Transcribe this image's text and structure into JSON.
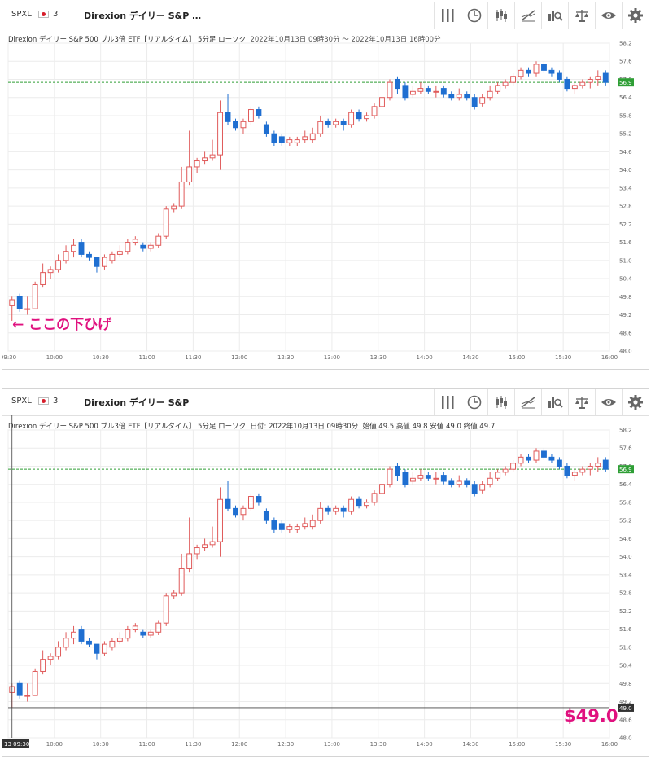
{
  "header": {
    "ticker": "SPXL",
    "flag_count": "3",
    "short_name": "Direxion デイリー S&P …",
    "short_name2": "Direxion デイリー S&P"
  },
  "toolbar_icons": [
    "bars-icon",
    "clock-icon",
    "candles-icon",
    "trend-icon",
    "search-chart-icon",
    "balance-icon",
    "eye-icon",
    "gear-icon"
  ],
  "panel1": {
    "info_title": "Direxion デイリー S&P 500 ブル3倍 ETF【リアルタイム】 5分足 ローソク",
    "info_range": "2022年10月13日 09時30分 ～ 2022年10月13日 16時00分",
    "annotation": "← ここの下ひげ"
  },
  "panel2": {
    "info_title": "Direxion デイリー S&P 500 ブル3倍 ETF【リアルタイム】 5分足 ローソク",
    "info_date_label": "日付:",
    "info_date": "2022年10月13日 09時30分",
    "info_open": "始値 49.5",
    "info_high": "高値 49.8",
    "info_low": "安値 49.0",
    "info_close": "終値 49.7",
    "price_label": "$49.0",
    "crosshair_price": "49.0",
    "crosshair_time": "13 09:30"
  },
  "colors": {
    "up": "#e05a5a",
    "down": "#1f6fd1",
    "last": "#2e9e35",
    "note": "#e0117f"
  },
  "chart_data": {
    "type": "candlestick",
    "interval": "5分足",
    "last_price_label": "56.9",
    "ylim": [
      48.0,
      58.2
    ],
    "y_ticks": [
      "58.2",
      "57.6",
      "57.0",
      "56.4",
      "55.8",
      "55.2",
      "54.6",
      "54.0",
      "53.4",
      "52.8",
      "52.2",
      "51.6",
      "51.0",
      "50.4",
      "49.8",
      "49.2",
      "48.6",
      "48.0"
    ],
    "x_ticks": [
      "09:30",
      "10:00",
      "10:30",
      "11:00",
      "11:30",
      "12:00",
      "12:30",
      "13:00",
      "13:30",
      "14:00",
      "14:30",
      "15:00",
      "15:30",
      "16:00"
    ],
    "candles": [
      {
        "t": "09:30",
        "o": 49.5,
        "h": 49.8,
        "l": 49.0,
        "c": 49.7
      },
      {
        "t": "09:35",
        "o": 49.8,
        "h": 49.9,
        "l": 49.3,
        "c": 49.4
      },
      {
        "t": "09:40",
        "o": 49.4,
        "h": 49.8,
        "l": 49.2,
        "c": 49.4
      },
      {
        "t": "09:45",
        "o": 49.4,
        "h": 50.3,
        "l": 49.4,
        "c": 50.2
      },
      {
        "t": "09:50",
        "o": 50.2,
        "h": 50.9,
        "l": 50.1,
        "c": 50.6
      },
      {
        "t": "09:55",
        "o": 50.6,
        "h": 50.8,
        "l": 50.4,
        "c": 50.7
      },
      {
        "t": "10:00",
        "o": 50.7,
        "h": 51.2,
        "l": 50.6,
        "c": 51.0
      },
      {
        "t": "10:05",
        "o": 51.0,
        "h": 51.5,
        "l": 50.9,
        "c": 51.3
      },
      {
        "t": "10:10",
        "o": 51.3,
        "h": 51.7,
        "l": 51.1,
        "c": 51.5
      },
      {
        "t": "10:15",
        "o": 51.6,
        "h": 51.7,
        "l": 51.1,
        "c": 51.2
      },
      {
        "t": "10:20",
        "o": 51.2,
        "h": 51.3,
        "l": 51.0,
        "c": 51.1
      },
      {
        "t": "10:25",
        "o": 51.1,
        "h": 51.1,
        "l": 50.6,
        "c": 50.8
      },
      {
        "t": "10:30",
        "o": 50.8,
        "h": 51.2,
        "l": 50.7,
        "c": 51.1
      },
      {
        "t": "10:35",
        "o": 51.0,
        "h": 51.3,
        "l": 50.9,
        "c": 51.2
      },
      {
        "t": "10:40",
        "o": 51.2,
        "h": 51.5,
        "l": 51.1,
        "c": 51.3
      },
      {
        "t": "10:45",
        "o": 51.3,
        "h": 51.7,
        "l": 51.2,
        "c": 51.6
      },
      {
        "t": "10:50",
        "o": 51.6,
        "h": 51.8,
        "l": 51.5,
        "c": 51.7
      },
      {
        "t": "10:55",
        "o": 51.5,
        "h": 51.6,
        "l": 51.3,
        "c": 51.4
      },
      {
        "t": "11:00",
        "o": 51.4,
        "h": 51.6,
        "l": 51.3,
        "c": 51.5
      },
      {
        "t": "11:05",
        "o": 51.5,
        "h": 51.9,
        "l": 51.4,
        "c": 51.8
      },
      {
        "t": "11:10",
        "o": 51.8,
        "h": 52.8,
        "l": 51.7,
        "c": 52.7
      },
      {
        "t": "11:15",
        "o": 52.7,
        "h": 52.9,
        "l": 52.6,
        "c": 52.8
      },
      {
        "t": "11:20",
        "o": 52.8,
        "h": 54.1,
        "l": 52.7,
        "c": 53.6
      },
      {
        "t": "11:25",
        "o": 53.6,
        "h": 55.3,
        "l": 53.5,
        "c": 54.1
      },
      {
        "t": "11:30",
        "o": 54.1,
        "h": 54.4,
        "l": 53.9,
        "c": 54.3
      },
      {
        "t": "11:35",
        "o": 54.3,
        "h": 54.6,
        "l": 54.2,
        "c": 54.4
      },
      {
        "t": "11:40",
        "o": 54.4,
        "h": 55.0,
        "l": 54.3,
        "c": 54.5
      },
      {
        "t": "11:45",
        "o": 54.5,
        "h": 56.3,
        "l": 54.0,
        "c": 55.9
      },
      {
        "t": "11:50",
        "o": 55.9,
        "h": 56.5,
        "l": 55.5,
        "c": 55.6
      },
      {
        "t": "11:55",
        "o": 55.6,
        "h": 55.7,
        "l": 55.3,
        "c": 55.4
      },
      {
        "t": "12:00",
        "o": 55.4,
        "h": 55.7,
        "l": 55.2,
        "c": 55.6
      },
      {
        "t": "12:05",
        "o": 55.6,
        "h": 56.1,
        "l": 55.5,
        "c": 56.0
      },
      {
        "t": "12:10",
        "o": 56.0,
        "h": 56.1,
        "l": 55.7,
        "c": 55.8
      },
      {
        "t": "12:15",
        "o": 55.5,
        "h": 55.6,
        "l": 55.1,
        "c": 55.2
      },
      {
        "t": "12:20",
        "o": 55.2,
        "h": 55.3,
        "l": 54.8,
        "c": 54.9
      },
      {
        "t": "12:25",
        "o": 55.1,
        "h": 55.2,
        "l": 54.8,
        "c": 54.9
      },
      {
        "t": "12:30",
        "o": 54.9,
        "h": 55.1,
        "l": 54.8,
        "c": 55.0
      },
      {
        "t": "12:35",
        "o": 54.9,
        "h": 55.1,
        "l": 54.8,
        "c": 55.0
      },
      {
        "t": "12:40",
        "o": 55.0,
        "h": 55.3,
        "l": 54.9,
        "c": 55.1
      },
      {
        "t": "12:45",
        "o": 55.0,
        "h": 55.4,
        "l": 54.9,
        "c": 55.2
      },
      {
        "t": "12:50",
        "o": 55.2,
        "h": 55.8,
        "l": 55.1,
        "c": 55.6
      },
      {
        "t": "12:55",
        "o": 55.6,
        "h": 55.7,
        "l": 55.4,
        "c": 55.5
      },
      {
        "t": "13:00",
        "o": 55.5,
        "h": 55.7,
        "l": 55.4,
        "c": 55.6
      },
      {
        "t": "13:05",
        "o": 55.6,
        "h": 55.7,
        "l": 55.3,
        "c": 55.5
      },
      {
        "t": "13:10",
        "o": 55.5,
        "h": 56.0,
        "l": 55.4,
        "c": 55.9
      },
      {
        "t": "13:15",
        "o": 55.9,
        "h": 56.0,
        "l": 55.6,
        "c": 55.7
      },
      {
        "t": "13:20",
        "o": 55.7,
        "h": 55.9,
        "l": 55.6,
        "c": 55.8
      },
      {
        "t": "13:25",
        "o": 55.8,
        "h": 56.2,
        "l": 55.7,
        "c": 56.1
      },
      {
        "t": "13:30",
        "o": 56.1,
        "h": 56.5,
        "l": 56.0,
        "c": 56.4
      },
      {
        "t": "13:35",
        "o": 56.4,
        "h": 57.0,
        "l": 56.3,
        "c": 56.9
      },
      {
        "t": "13:40",
        "o": 57.0,
        "h": 57.1,
        "l": 56.5,
        "c": 56.7
      },
      {
        "t": "13:45",
        "o": 56.8,
        "h": 56.9,
        "l": 56.3,
        "c": 56.4
      },
      {
        "t": "13:50",
        "o": 56.5,
        "h": 56.8,
        "l": 56.4,
        "c": 56.6
      },
      {
        "t": "13:55",
        "o": 56.6,
        "h": 56.9,
        "l": 56.5,
        "c": 56.7
      },
      {
        "t": "14:00",
        "o": 56.7,
        "h": 56.8,
        "l": 56.5,
        "c": 56.6
      },
      {
        "t": "14:05",
        "o": 56.6,
        "h": 56.8,
        "l": 56.4,
        "c": 56.6
      },
      {
        "t": "14:10",
        "o": 56.7,
        "h": 56.8,
        "l": 56.4,
        "c": 56.5
      },
      {
        "t": "14:15",
        "o": 56.5,
        "h": 56.6,
        "l": 56.3,
        "c": 56.4
      },
      {
        "t": "14:20",
        "o": 56.4,
        "h": 56.7,
        "l": 56.3,
        "c": 56.5
      },
      {
        "t": "14:25",
        "o": 56.5,
        "h": 56.6,
        "l": 56.3,
        "c": 56.4
      },
      {
        "t": "14:30",
        "o": 56.4,
        "h": 56.5,
        "l": 56.0,
        "c": 56.1
      },
      {
        "t": "14:35",
        "o": 56.2,
        "h": 56.5,
        "l": 56.1,
        "c": 56.4
      },
      {
        "t": "14:40",
        "o": 56.4,
        "h": 56.8,
        "l": 56.3,
        "c": 56.6
      },
      {
        "t": "14:45",
        "o": 56.6,
        "h": 56.9,
        "l": 56.5,
        "c": 56.8
      },
      {
        "t": "14:50",
        "o": 56.8,
        "h": 57.0,
        "l": 56.7,
        "c": 56.9
      },
      {
        "t": "14:55",
        "o": 56.9,
        "h": 57.2,
        "l": 56.8,
        "c": 57.1
      },
      {
        "t": "15:00",
        "o": 57.1,
        "h": 57.4,
        "l": 57.0,
        "c": 57.3
      },
      {
        "t": "15:05",
        "o": 57.3,
        "h": 57.4,
        "l": 57.1,
        "c": 57.2
      },
      {
        "t": "15:10",
        "o": 57.2,
        "h": 57.6,
        "l": 57.1,
        "c": 57.5
      },
      {
        "t": "15:15",
        "o": 57.5,
        "h": 57.6,
        "l": 57.2,
        "c": 57.3
      },
      {
        "t": "15:20",
        "o": 57.3,
        "h": 57.4,
        "l": 57.1,
        "c": 57.2
      },
      {
        "t": "15:25",
        "o": 57.2,
        "h": 57.3,
        "l": 56.9,
        "c": 57.0
      },
      {
        "t": "15:30",
        "o": 57.0,
        "h": 57.1,
        "l": 56.6,
        "c": 56.7
      },
      {
        "t": "15:35",
        "o": 56.7,
        "h": 56.9,
        "l": 56.5,
        "c": 56.8
      },
      {
        "t": "15:40",
        "o": 56.8,
        "h": 57.0,
        "l": 56.7,
        "c": 56.9
      },
      {
        "t": "15:45",
        "o": 56.9,
        "h": 57.1,
        "l": 56.7,
        "c": 57.0
      },
      {
        "t": "15:50",
        "o": 57.0,
        "h": 57.3,
        "l": 56.8,
        "c": 57.1
      },
      {
        "t": "15:55",
        "o": 57.2,
        "h": 57.3,
        "l": 56.8,
        "c": 56.9
      }
    ]
  }
}
